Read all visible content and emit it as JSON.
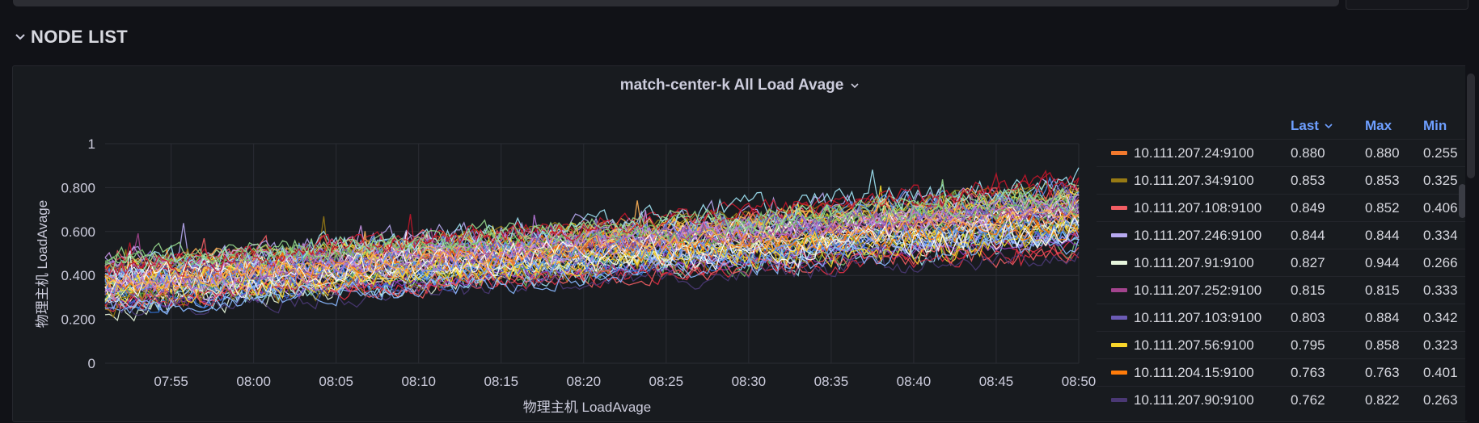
{
  "row": {
    "title": "NODE LIST",
    "icon": "chevron-down-icon"
  },
  "panel": {
    "title": "match-center-k All Load Avage",
    "title_icon": "chevron-down-icon"
  },
  "legend": {
    "columns": {
      "last": "Last",
      "max": "Max",
      "min": "Min"
    },
    "sort_icon": "chevron-down-icon",
    "rows": [
      {
        "name": "10.111.207.24:9100",
        "last": "0.880",
        "max": "0.880",
        "min": "0.255",
        "color": "#f2792d"
      },
      {
        "name": "10.111.207.34:9100",
        "last": "0.853",
        "max": "0.853",
        "min": "0.325",
        "color": "#977a14"
      },
      {
        "name": "10.111.207.108:9100",
        "last": "0.849",
        "max": "0.852",
        "min": "0.406",
        "color": "#f25d63"
      },
      {
        "name": "10.111.207.246:9100",
        "last": "0.844",
        "max": "0.844",
        "min": "0.334",
        "color": "#b7a9f0"
      },
      {
        "name": "10.111.207.91:9100",
        "last": "0.827",
        "max": "0.944",
        "min": "0.266",
        "color": "#e6f5dc"
      },
      {
        "name": "10.111.207.252:9100",
        "last": "0.815",
        "max": "0.815",
        "min": "0.333",
        "color": "#a3448e"
      },
      {
        "name": "10.111.207.103:9100",
        "last": "0.803",
        "max": "0.884",
        "min": "0.342",
        "color": "#6b5bb5"
      },
      {
        "name": "10.111.207.56:9100",
        "last": "0.795",
        "max": "0.858",
        "min": "0.323",
        "color": "#f8d52a"
      },
      {
        "name": "10.111.204.15:9100",
        "last": "0.763",
        "max": "0.763",
        "min": "0.401",
        "color": "#ff7c0a"
      },
      {
        "name": "10.111.207.90:9100",
        "last": "0.762",
        "max": "0.822",
        "min": "0.263",
        "color": "#4a3874"
      }
    ]
  },
  "chart_data": {
    "type": "line",
    "title": "",
    "xlabel": "物理主机 LoadAvage",
    "ylabel": "物理主机 LoadAvage",
    "ylim": [
      0,
      1
    ],
    "yticks": [
      "0",
      "0.200",
      "0.400",
      "0.600",
      "0.800",
      "1"
    ],
    "x_range": [
      "07:51",
      "08:50"
    ],
    "xticks": [
      "07:55",
      "08:00",
      "08:05",
      "08:10",
      "08:15",
      "08:20",
      "08:25",
      "08:30",
      "08:35",
      "08:40",
      "08:45",
      "08:50"
    ],
    "grid": true,
    "legend_position": "right",
    "series_count": 70,
    "series_trend": {
      "start_range": [
        0.2,
        0.5
      ],
      "end_range": [
        0.4,
        0.9
      ]
    },
    "palette": [
      "#f2792d",
      "#977a14",
      "#f25d63",
      "#b7a9f0",
      "#e6f5dc",
      "#a3448e",
      "#6b5bb5",
      "#f8d52a",
      "#ff7c0a",
      "#4a3874",
      "#73bf69",
      "#5794f2",
      "#8ab8ff",
      "#ffffff",
      "#c4162a",
      "#b877d9",
      "#96d98d",
      "#ffb357",
      "#ca95e5",
      "#8f3bb8",
      "#56a64b",
      "#3274d9",
      "#fade2a",
      "#e02f44",
      "#a0e4f5",
      "#d9d9d9"
    ]
  }
}
